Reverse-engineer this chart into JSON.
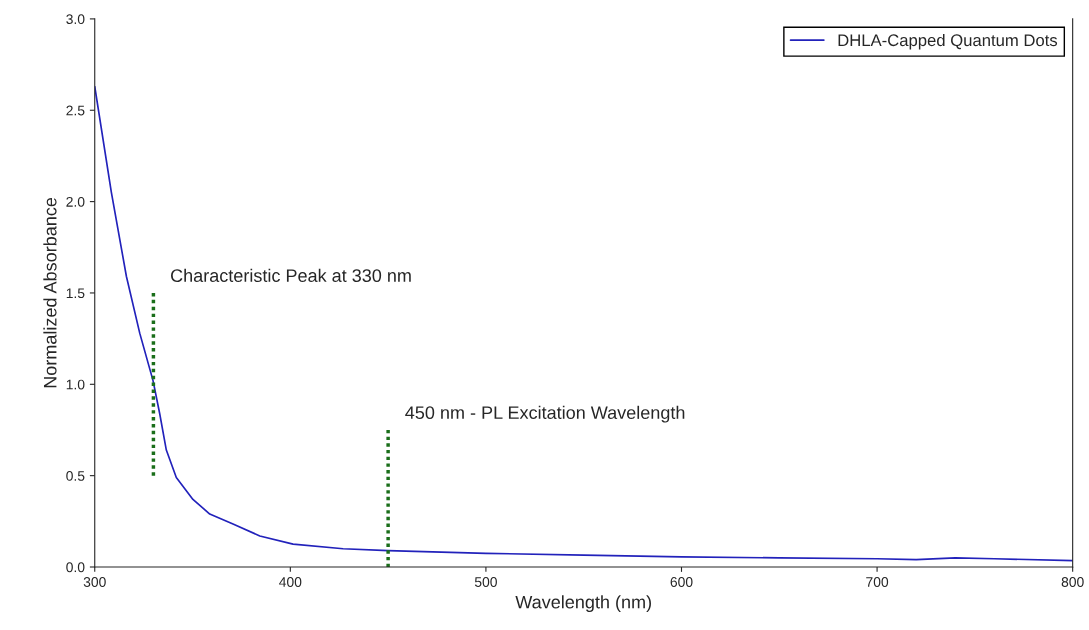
{
  "chart_data": {
    "type": "line",
    "xlabel": "Wavelength (nm)",
    "ylabel": "Normalized Absorbance",
    "xlim": [
      300,
      800
    ],
    "xticks": [
      300,
      400,
      500,
      600,
      700,
      800
    ],
    "ylim": [
      0,
      3
    ],
    "yticks": [
      {
        "value": 0,
        "label": "0.0"
      },
      0.5,
      {
        "value": 1,
        "label": "1.0"
      },
      1.5,
      {
        "value": 2,
        "label": "2.0"
      },
      2.5,
      {
        "value": 3,
        "label": "3.0"
      }
    ],
    "grid": false,
    "legend": "top right",
    "series": [
      {
        "name": "DHLA-Capped Quantum Dots",
        "color": "#2222bb",
        "line_style": "solid",
        "x": [
          300,
          308.5,
          316.2,
          323,
          329.8,
          333.2,
          336.6,
          341.7,
          350.2,
          358.8,
          370.7,
          384.4,
          401.4,
          427,
          450,
          500,
          550,
          600,
          650,
          700,
          720,
          740,
          760,
          800
        ],
        "values": [
          2.63,
          2.05,
          1.59,
          1.28,
          1.02,
          0.84,
          0.64,
          0.49,
          0.37,
          0.29,
          0.235,
          0.17,
          0.125,
          0.1,
          0.09,
          0.075,
          0.065,
          0.055,
          0.05,
          0.045,
          0.04,
          0.05,
          0.045,
          0.035
        ]
      },
      {
        "color": "#1a6e1a",
        "line_style": "dotted",
        "x": [
          330,
          330
        ],
        "values": [
          0.5,
          1.5
        ]
      },
      {
        "color": "#1a6e1a",
        "line_style": "dotted",
        "x": [
          450,
          450
        ],
        "values": [
          0.75,
          0
        ]
      }
    ],
    "annotations": [
      {
        "text": "Characteristic Peak at 330 nm",
        "x": 330,
        "y": 1.5
      },
      {
        "text": "450 nm - PL Excitation Wavelength",
        "x": 450,
        "y": 0.75
      }
    ]
  }
}
